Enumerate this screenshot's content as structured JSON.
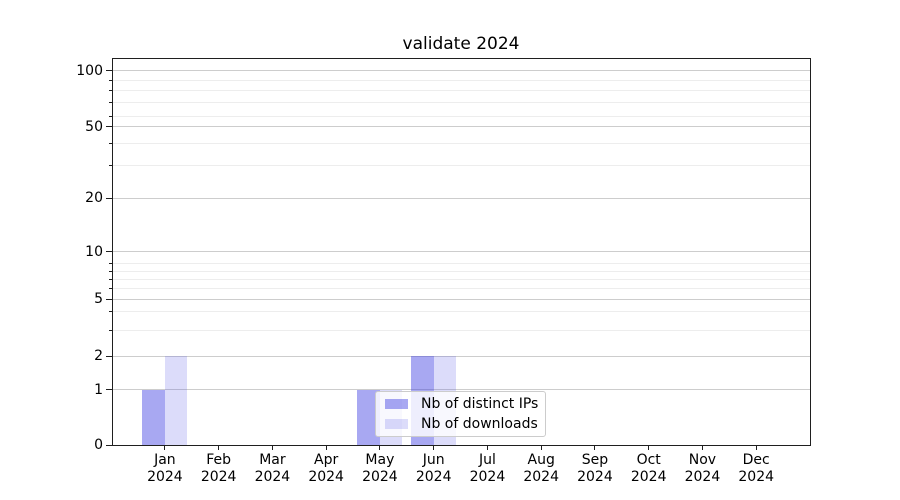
{
  "chart_data": {
    "type": "bar",
    "title": "validate 2024",
    "x_categories": [
      {
        "month": "Jan",
        "year": "2024"
      },
      {
        "month": "Feb",
        "year": "2024"
      },
      {
        "month": "Mar",
        "year": "2024"
      },
      {
        "month": "Apr",
        "year": "2024"
      },
      {
        "month": "May",
        "year": "2024"
      },
      {
        "month": "Jun",
        "year": "2024"
      },
      {
        "month": "Jul",
        "year": "2024"
      },
      {
        "month": "Aug",
        "year": "2024"
      },
      {
        "month": "Sep",
        "year": "2024"
      },
      {
        "month": "Oct",
        "year": "2024"
      },
      {
        "month": "Nov",
        "year": "2024"
      },
      {
        "month": "Dec",
        "year": "2024"
      }
    ],
    "series": [
      {
        "name": "Nb of distinct IPs",
        "values": [
          1,
          0,
          0,
          0,
          1,
          2,
          0,
          0,
          0,
          0,
          0,
          0
        ],
        "color_solid": "#a8a8f2",
        "color_rgba": "rgba(63,63,227,0.45)"
      },
      {
        "name": "Nb of downloads",
        "values": [
          2,
          0,
          0,
          0,
          1,
          2,
          0,
          0,
          0,
          0,
          0,
          0
        ],
        "color_solid": "#dcdcf8",
        "color_rgba": "rgba(80,80,230,0.20)"
      }
    ],
    "y_axis": {
      "scale": "log-like (linear near zero)",
      "range": [
        0,
        100
      ],
      "major_ticks": [
        {
          "label": "100",
          "value": 100
        },
        {
          "label": "50",
          "value": 50
        },
        {
          "label": "20",
          "value": 20
        },
        {
          "label": "10",
          "value": 10
        },
        {
          "label": "5",
          "value": 5
        },
        {
          "label": "2",
          "value": 2
        },
        {
          "label": "1",
          "value": 1
        },
        {
          "label": "0",
          "value": 0
        }
      ],
      "minor_tick_values": [
        90,
        80,
        70,
        60,
        40,
        30,
        9,
        8,
        7,
        6,
        4,
        3
      ]
    },
    "grid": {
      "which": "both",
      "major_color": "#cdcdcd",
      "minor_color": "#ededed"
    },
    "legend": {
      "position": "lower-center",
      "entries": [
        "Nb of distinct IPs",
        "Nb of downloads"
      ]
    }
  }
}
